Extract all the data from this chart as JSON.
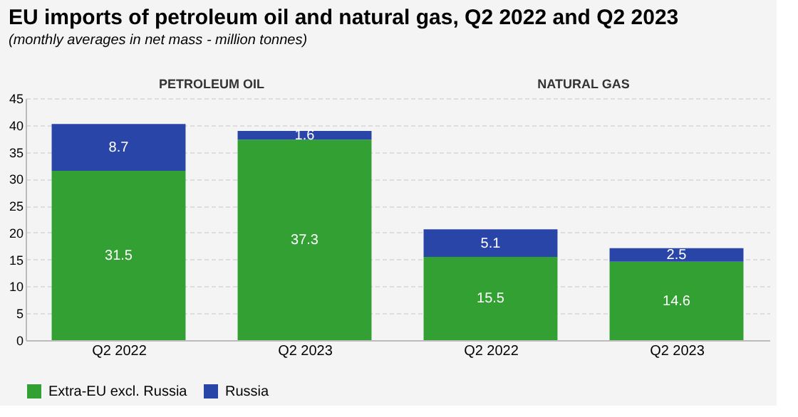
{
  "chart_data": {
    "type": "bar",
    "title": "EU imports of petroleum oil and natural gas, Q2 2022 and Q2 2023",
    "subtitle": "(monthly averages in net mass - million tonnes)",
    "categories": [
      "Q2 2022",
      "Q2 2023",
      "Q2 2022",
      "Q2 2023"
    ],
    "series": [
      {
        "name": "Extra-EU excl. Russia",
        "color": "#33a033",
        "values": [
          31.5,
          37.3,
          15.5,
          14.6
        ]
      },
      {
        "name": "Russia",
        "color": "#2a45a8",
        "values": [
          8.7,
          1.6,
          5.1,
          2.5
        ]
      }
    ],
    "stacked": true,
    "data_labels": true,
    "ylim": [
      0,
      45
    ],
    "yticks": [
      0,
      5,
      10,
      15,
      20,
      25,
      30,
      35,
      40,
      45
    ],
    "grid": "y",
    "legend": "bottom",
    "annotations": [
      {
        "text": "PETROLEUM OIL"
      },
      {
        "text": "NATURAL GAS"
      }
    ]
  }
}
